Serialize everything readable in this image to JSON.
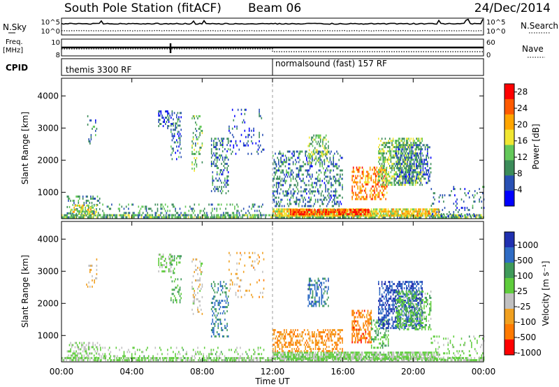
{
  "header": {
    "title": "South Pole Station (fitACF)",
    "beam": "Beam 06",
    "date": "24/Dec/2014"
  },
  "summary": {
    "nsky_label": "N.Sky",
    "nsky_ticks": [
      "10^5",
      "10^0"
    ],
    "nsearch_label": "N.Search",
    "freq_label_top": "Freq.",
    "freq_label_bottom": "[MHz]",
    "freq_ticks": [
      "10",
      "8"
    ],
    "nave_label": "Nave",
    "nave_ticks": [
      "60",
      "0"
    ],
    "cpid_label": "CPID",
    "cpid_1": "themis 3300 RF",
    "cpid_2": "normalsound (fast) 157 RF"
  },
  "colors": {
    "power_scale": [
      "#0000ff",
      "#2850b4",
      "#3c8c5a",
      "#64c85a",
      "#f0e632",
      "#ffa500",
      "#ff5a00",
      "#ff0000"
    ],
    "velocity_scale": [
      "#2030b0",
      "#2f6cc4",
      "#3f9a5a",
      "#5fcc3c",
      "#c0c0c0",
      "#f0a020",
      "#ff7a00",
      "#ff0000"
    ]
  },
  "chart_data": [
    {
      "type": "heatmap",
      "panel": "power",
      "ylabel": "Slant Range [km]",
      "ylim": [
        180,
        4550
      ],
      "yticks": [
        1000,
        2000,
        3000,
        4000
      ],
      "colorbar_label": "Power [dB]",
      "colorbar_ticks": [
        "4",
        "8",
        "12",
        "16",
        "20",
        "24",
        "28"
      ],
      "clim": [
        0,
        30
      ],
      "regions": [
        {
          "t0": 0.0,
          "t1": 24.0,
          "r0": 200,
          "r1": 320,
          "v": 12,
          "d": 0.7
        },
        {
          "t0": 0.3,
          "t1": 2.2,
          "r0": 300,
          "r1": 900,
          "v": 9,
          "d": 0.25
        },
        {
          "t0": 0.5,
          "t1": 2.0,
          "r0": 320,
          "r1": 620,
          "v": 16,
          "d": 0.5
        },
        {
          "t0": 2.0,
          "t1": 11.5,
          "r0": 250,
          "r1": 650,
          "v": 10,
          "d": 0.18
        },
        {
          "t0": 1.4,
          "t1": 2.0,
          "r0": 2500,
          "r1": 3400,
          "v": 8,
          "d": 0.15
        },
        {
          "t0": 5.5,
          "t1": 6.3,
          "r0": 3000,
          "r1": 3550,
          "v": 6,
          "d": 0.35
        },
        {
          "t0": 6.2,
          "t1": 6.8,
          "r0": 2000,
          "r1": 3500,
          "v": 7,
          "d": 0.3
        },
        {
          "t0": 7.4,
          "t1": 8.0,
          "r0": 1700,
          "r1": 3400,
          "v": 12,
          "d": 0.25
        },
        {
          "t0": 8.5,
          "t1": 9.5,
          "r0": 1000,
          "r1": 2700,
          "v": 8,
          "d": 0.3
        },
        {
          "t0": 9.5,
          "t1": 11.5,
          "r0": 2200,
          "r1": 3600,
          "v": 5,
          "d": 0.12
        },
        {
          "t0": 12.0,
          "t1": 21.5,
          "r0": 250,
          "r1": 500,
          "v": 18,
          "d": 0.85
        },
        {
          "t0": 13.0,
          "t1": 17.5,
          "r0": 300,
          "r1": 480,
          "v": 26,
          "d": 0.8
        },
        {
          "t0": 12.0,
          "t1": 16.0,
          "r0": 600,
          "r1": 2300,
          "v": 8,
          "d": 0.32
        },
        {
          "t0": 14.0,
          "t1": 15.2,
          "r0": 1900,
          "r1": 2800,
          "v": 13,
          "d": 0.35
        },
        {
          "t0": 16.5,
          "t1": 18.5,
          "r0": 800,
          "r1": 1800,
          "v": 22,
          "d": 0.5
        },
        {
          "t0": 18.0,
          "t1": 20.5,
          "r0": 1200,
          "r1": 2700,
          "v": 13,
          "d": 0.55
        },
        {
          "t0": 19.0,
          "t1": 21.0,
          "r0": 1300,
          "r1": 2500,
          "v": 7,
          "d": 0.45
        },
        {
          "t0": 21.0,
          "t1": 24.0,
          "r0": 250,
          "r1": 1200,
          "v": 7,
          "d": 0.15
        }
      ]
    },
    {
      "type": "heatmap",
      "panel": "velocity",
      "ylabel": "Slant Range [km]",
      "ylim": [
        180,
        4550
      ],
      "yticks": [
        1000,
        2000,
        3000,
        4000
      ],
      "xlabel": "Time UT",
      "xticks": [
        "00:00",
        "04:00",
        "08:00",
        "12:00",
        "16:00",
        "20:00",
        "00:00"
      ],
      "colorbar_label": "Velocity [m s⁻¹]",
      "colorbar_ticks": [
        "1000",
        "500",
        "100",
        "25",
        "-25",
        "-100",
        "-500",
        "-1000"
      ],
      "clim": [
        -1200,
        1200
      ],
      "regions": [
        {
          "t0": 0.0,
          "t1": 24.0,
          "r0": 200,
          "r1": 330,
          "v": 60,
          "d": 0.7
        },
        {
          "t0": 0.3,
          "t1": 2.2,
          "r0": 300,
          "r1": 800,
          "v": 0,
          "d": 0.35
        },
        {
          "t0": 2.0,
          "t1": 11.5,
          "r0": 250,
          "r1": 650,
          "v": 80,
          "d": 0.18
        },
        {
          "t0": 1.4,
          "t1": 2.0,
          "r0": 2500,
          "r1": 3400,
          "v": -300,
          "d": 0.15
        },
        {
          "t0": 5.5,
          "t1": 6.3,
          "r0": 3000,
          "r1": 3550,
          "v": 0,
          "d": 0.35
        },
        {
          "t0": 6.2,
          "t1": 6.8,
          "r0": 2000,
          "r1": 3500,
          "v": 300,
          "d": 0.25
        },
        {
          "t0": 7.4,
          "t1": 8.0,
          "r0": 1700,
          "r1": 3400,
          "v": -200,
          "d": 0.25
        },
        {
          "t0": 8.5,
          "t1": 9.5,
          "r0": 1000,
          "r1": 2700,
          "v": 600,
          "d": 0.3
        },
        {
          "t0": 9.5,
          "t1": 11.5,
          "r0": 2200,
          "r1": 3600,
          "v": -400,
          "d": 0.12
        },
        {
          "t0": 12.0,
          "t1": 21.5,
          "r0": 250,
          "r1": 500,
          "v": 60,
          "d": 0.8
        },
        {
          "t0": 12.0,
          "t1": 16.0,
          "r0": 500,
          "r1": 1200,
          "v": -600,
          "d": 0.45
        },
        {
          "t0": 14.0,
          "t1": 15.2,
          "r0": 1900,
          "r1": 2800,
          "v": 700,
          "d": 0.4
        },
        {
          "t0": 16.5,
          "t1": 17.6,
          "r0": 800,
          "r1": 1800,
          "v": -700,
          "d": 0.5
        },
        {
          "t0": 17.6,
          "t1": 18.6,
          "r0": 600,
          "r1": 1500,
          "v": 300,
          "d": 0.35
        },
        {
          "t0": 18.0,
          "t1": 20.5,
          "r0": 1200,
          "r1": 2700,
          "v": 900,
          "d": 0.55
        },
        {
          "t0": 19.0,
          "t1": 21.0,
          "r0": 1200,
          "r1": 2400,
          "v": 200,
          "d": 0.45
        },
        {
          "t0": 21.0,
          "t1": 24.0,
          "r0": 250,
          "r1": 1000,
          "v": 60,
          "d": 0.15
        }
      ]
    }
  ]
}
